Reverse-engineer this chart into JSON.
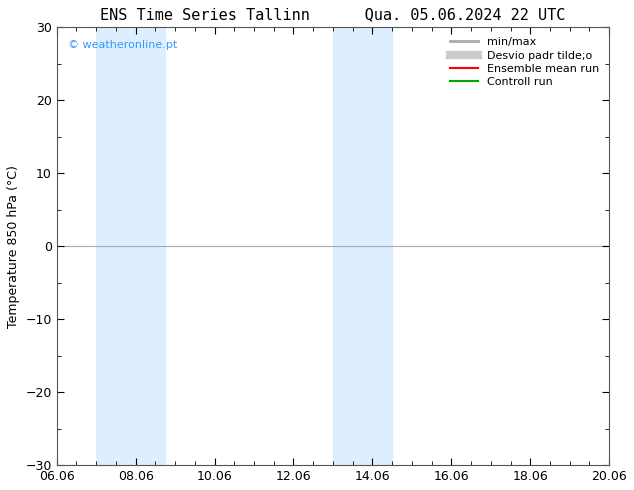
{
  "title": "ENS Time Series Tallinn      Qua. 05.06.2024 22 UTC",
  "ylabel": "Temperature 850 hPa (°C)",
  "xlabel_ticks": [
    "06.06",
    "08.06",
    "10.06",
    "12.06",
    "14.06",
    "16.06",
    "18.06",
    "20.06"
  ],
  "xlim": [
    0,
    14
  ],
  "ylim": [
    -30,
    30
  ],
  "yticks": [
    -30,
    -20,
    -10,
    0,
    10,
    20,
    30
  ],
  "background_color": "#ffffff",
  "plot_bg_color": "#ffffff",
  "shaded_bands": [
    {
      "x_start": 1.0,
      "x_end": 2.75,
      "color": "#ddeeff"
    },
    {
      "x_start": 7.0,
      "x_end": 8.5,
      "color": "#ddeeff"
    }
  ],
  "hline_y": 0,
  "hline_color": "#aaaaaa",
  "watermark": "© weatheronline.pt",
  "watermark_color": "#3399ff",
  "legend_items": [
    {
      "label": "min/max",
      "color": "#aaaaaa",
      "lw": 2,
      "ls": "-"
    },
    {
      "label": "Desvio padr tilde;o",
      "color": "#cccccc",
      "lw": 6,
      "ls": "-"
    },
    {
      "label": "Ensemble mean run",
      "color": "#ff0000",
      "lw": 1.5,
      "ls": "-"
    },
    {
      "label": "Controll run",
      "color": "#00aa00",
      "lw": 1.5,
      "ls": "-"
    }
  ],
  "tick_label_fontsize": 9,
  "ylabel_fontsize": 9,
  "title_fontsize": 11,
  "watermark_fontsize": 8
}
